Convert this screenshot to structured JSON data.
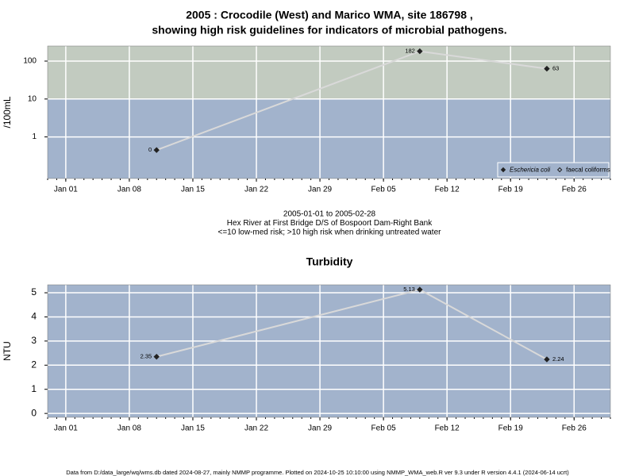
{
  "chart_data": [
    {
      "type": "line",
      "title": [
        "2005 : Crocodile (West) and Marico WMA, site 186798 ,",
        "showing high risk guidelines for indicators of microbial pathogens."
      ],
      "ylabel": "/100mL",
      "log_y": true,
      "grid": true,
      "x": [
        "2005-01-11",
        "2005-02-09",
        "2005-02-23"
      ],
      "series": [
        {
          "name": "Eschericia coli",
          "color": "#222222",
          "marker": "filled-diamond",
          "values": [
            0.45,
            182,
            63
          ],
          "value_labels": [
            "0",
            "182",
            "63"
          ]
        },
        {
          "name": "faecal coliforms",
          "color": "#222222",
          "marker": "open-diamond",
          "values": [
            null,
            null,
            null
          ]
        }
      ],
      "line_color": "#d9d9d9",
      "threshold": 10,
      "above_color": "#c2cbc0",
      "below_color": "#a2b3cc",
      "xlim": [
        "2004-12-30",
        "2005-03-02"
      ],
      "xticks": [
        {
          "value": "2005-01-01",
          "label": "Jan 01"
        },
        {
          "value": "2005-01-08",
          "label": "Jan 08"
        },
        {
          "value": "2005-01-15",
          "label": "Jan 15"
        },
        {
          "value": "2005-01-22",
          "label": "Jan 22"
        },
        {
          "value": "2005-01-29",
          "label": "Jan 29"
        },
        {
          "value": "2005-02-05",
          "label": "Feb 05"
        },
        {
          "value": "2005-02-12",
          "label": "Feb 12"
        },
        {
          "value": "2005-02-19",
          "label": "Feb 19"
        },
        {
          "value": "2005-02-26",
          "label": "Feb 26"
        }
      ],
      "ylim": [
        0.08,
        250
      ],
      "yticks": [
        1,
        10,
        100
      ],
      "legend": "bottom-right",
      "notes": [
        "2005-01-01 to 2005-02-28",
        "Hex River at First Bridge D/S of Bospoort Dam-Right Bank",
        "<=10 low-med risk; >10 high risk when drinking untreated water"
      ]
    },
    {
      "type": "line",
      "title": [
        "Turbidity"
      ],
      "ylabel": "NTU",
      "log_y": false,
      "grid": true,
      "x": [
        "2005-01-11",
        "2005-02-09",
        "2005-02-23"
      ],
      "series": [
        {
          "color": "#222222",
          "marker": "filled-diamond",
          "values": [
            2.35,
            5.13,
            2.24
          ]
        }
      ],
      "line_color": "#d9d9d9",
      "below_color": "#a2b3cc",
      "xlim": [
        "2004-12-30",
        "2005-03-02"
      ],
      "xticks": [
        {
          "value": "2005-01-01",
          "label": "Jan 01"
        },
        {
          "value": "2005-01-08",
          "label": "Jan 08"
        },
        {
          "value": "2005-01-15",
          "label": "Jan 15"
        },
        {
          "value": "2005-01-22",
          "label": "Jan 22"
        },
        {
          "value": "2005-01-29",
          "label": "Jan 29"
        },
        {
          "value": "2005-02-05",
          "label": "Feb 05"
        },
        {
          "value": "2005-02-12",
          "label": "Feb 12"
        },
        {
          "value": "2005-02-19",
          "label": "Feb 19"
        },
        {
          "value": "2005-02-26",
          "label": "Feb 26"
        }
      ],
      "ylim": [
        -0.16,
        5.33
      ],
      "yticks": [
        0,
        1,
        2,
        3,
        4,
        5
      ]
    }
  ],
  "footer": "Data from D:/data_large/wq/wms.db dated 2024-08-27, mainly NMMP programme. Plotted on 2024-10-25 10:10:00 using NMMP_WMA_web.R ver 9.3 under R version 4.4.1 (2024-06-14 ucrt)"
}
